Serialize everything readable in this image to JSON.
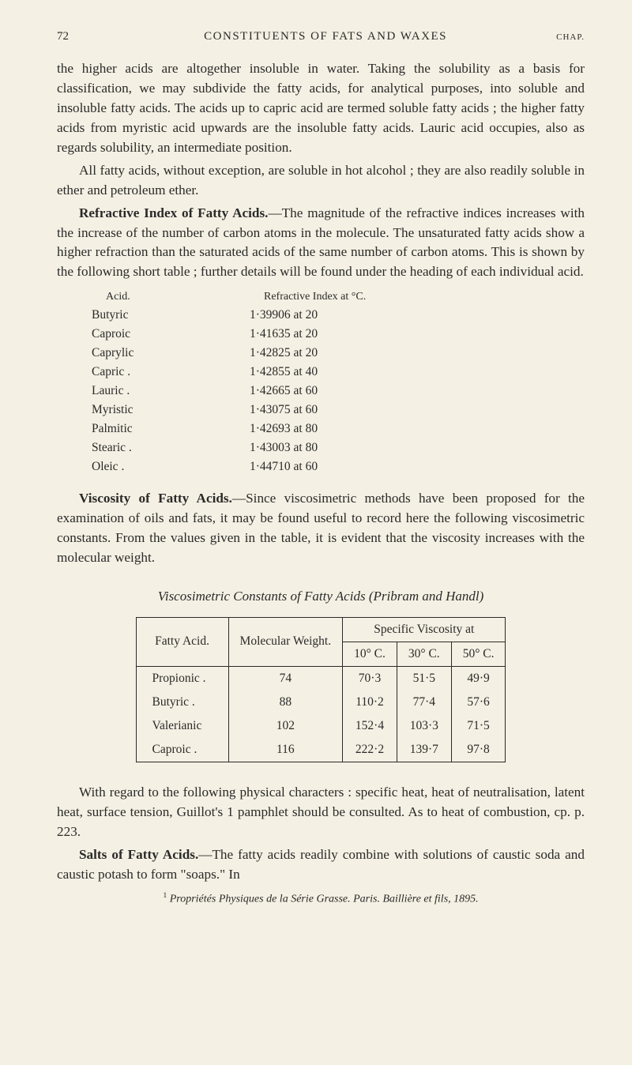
{
  "header": {
    "page_number": "72",
    "running_head": "CONSTITUENTS OF FATS AND WAXES",
    "chap": "CHAP."
  },
  "paragraphs": {
    "p1": "the higher acids are altogether insoluble in water. Taking the solubility as a basis for classification, we may subdivide the fatty acids, for analytical purposes, into soluble and insoluble fatty acids. The acids up to capric acid are termed soluble fatty acids ; the higher fatty acids from myristic acid upwards are the insoluble fatty acids. Lauric acid occupies, also as regards solubility, an intermediate position.",
    "p2": "All fatty acids, without exception, are soluble in hot alcohol ; they are also readily soluble in ether and petroleum ether.",
    "p3a": "Refractive Index of Fatty Acids.",
    "p3b": "—The magnitude of the refractive indices increases with the increase of the number of carbon atoms in the molecule. The unsaturated fatty acids show a higher refraction than the saturated acids of the same number of carbon atoms. This is shown by the following short table ; further details will be found under the heading of each individual acid.",
    "p4a": "Viscosity of Fatty Acids.",
    "p4b": "—Since viscosimetric methods have been proposed for the examination of oils and fats, it may be found useful to record here the following viscosimetric constants. From the values given in the table, it is evident that the viscosity increases with the molecular weight.",
    "visc_heading": "Viscosimetric Constants of Fatty Acids (Pribram and Handl)",
    "p5": "With regard to the following physical characters : specific heat, heat of neutralisation, latent heat, surface tension, Guillot's 1 pamphlet should be consulted. As to heat of combustion, cp. p. 223.",
    "p6a": "Salts of Fatty Acids.",
    "p6b": "—The fatty acids readily combine with solutions of caustic soda and caustic potash to form \"soaps.\" In"
  },
  "refr_table": {
    "head_a": "Acid.",
    "head_b": "Refractive Index at °C.",
    "rows": [
      {
        "a": "Butyric",
        "b": "1·39906 at 20"
      },
      {
        "a": "Caproic",
        "b": "1·41635 at 20"
      },
      {
        "a": "Caprylic",
        "b": "1·42825 at 20"
      },
      {
        "a": "Capric .",
        "b": "1·42855 at 40"
      },
      {
        "a": "Lauric .",
        "b": "1·42665 at 60"
      },
      {
        "a": "Myristic",
        "b": "1·43075 at 60"
      },
      {
        "a": "Palmitic",
        "b": "1·42693 at 80"
      },
      {
        "a": "Stearic .",
        "b": "1·43003 at 80"
      },
      {
        "a": "Oleic  .",
        "b": "1·44710 at 60"
      }
    ]
  },
  "visc_table": {
    "col1": "Fatty Acid.",
    "col2": "Molecular Weight.",
    "col_group": "Specific Viscosity at",
    "sub1": "10° C.",
    "sub2": "30° C.",
    "sub3": "50° C.",
    "rows": [
      {
        "a": "Propionic .",
        "w": "74",
        "c1": "70·3",
        "c2": "51·5",
        "c3": "49·9"
      },
      {
        "a": "Butyric  .",
        "w": "88",
        "c1": "110·2",
        "c2": "77·4",
        "c3": "57·6"
      },
      {
        "a": "Valerianic",
        "w": "102",
        "c1": "152·4",
        "c2": "103·3",
        "c3": "71·5"
      },
      {
        "a": "Caproic  .",
        "w": "116",
        "c1": "222·2",
        "c2": "139·7",
        "c3": "97·8"
      }
    ]
  },
  "footnote": {
    "marker": "1",
    "text": "Propriétés Physiques de la Série Grasse.  Paris.  Baillière et fils, 1895."
  }
}
